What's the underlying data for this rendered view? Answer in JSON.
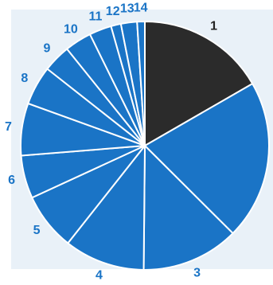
{
  "chart_data": {
    "type": "pie",
    "title": "",
    "labels": [
      "1",
      "2",
      "3",
      "4",
      "5",
      "6",
      "7",
      "8",
      "9",
      "10",
      "11",
      "12",
      "13",
      "14"
    ],
    "values": [
      16.7,
      20.8,
      12.7,
      10.5,
      7.5,
      5.6,
      6.8,
      5.1,
      3.6,
      3.5,
      2.9,
      1.3,
      2.1,
      1.0
    ],
    "start_angle_deg": 0,
    "direction": "clockwise",
    "legend": "none",
    "colors": {
      "slice_1": "#2b2b2b",
      "slices_other": "#1a74c6",
      "label_1": "#222222",
      "labels_other": "#1a74c6",
      "background_panel": "#e9f1f8",
      "separator": "#ffffff"
    }
  }
}
